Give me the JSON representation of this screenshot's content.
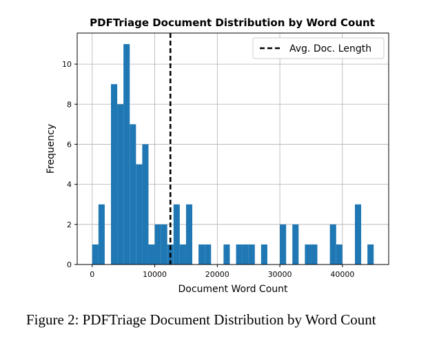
{
  "chart_data": {
    "type": "bar",
    "title": "PDFTriage Document Distribution by Word Count",
    "xlabel": "Document Word Count",
    "ylabel": "Frequency",
    "xlim": [
      -2400,
      47400
    ],
    "ylim": [
      0,
      11.55
    ],
    "xticks": [
      0,
      10000,
      20000,
      30000,
      40000
    ],
    "xtick_labels": [
      "0",
      "10000",
      "20000",
      "30000",
      "40000"
    ],
    "yticks": [
      0,
      2,
      4,
      6,
      8,
      10
    ],
    "ytick_labels": [
      "0",
      "2",
      "4",
      "6",
      "8",
      "10"
    ],
    "grid": true,
    "bar_color": "#1f77b4",
    "bins": [
      {
        "x0": 0,
        "x1": 1000,
        "value": 1
      },
      {
        "x0": 1000,
        "x1": 2000,
        "value": 3
      },
      {
        "x0": 3000,
        "x1": 4000,
        "value": 9
      },
      {
        "x0": 4000,
        "x1": 5000,
        "value": 8
      },
      {
        "x0": 5000,
        "x1": 6000,
        "value": 11
      },
      {
        "x0": 6000,
        "x1": 7000,
        "value": 7
      },
      {
        "x0": 7000,
        "x1": 8000,
        "value": 5
      },
      {
        "x0": 8000,
        "x1": 9000,
        "value": 6
      },
      {
        "x0": 9000,
        "x1": 10000,
        "value": 1
      },
      {
        "x0": 10000,
        "x1": 11000,
        "value": 2
      },
      {
        "x0": 11000,
        "x1": 12000,
        "value": 2
      },
      {
        "x0": 12000,
        "x1": 13000,
        "value": 1
      },
      {
        "x0": 13000,
        "x1": 14000,
        "value": 3
      },
      {
        "x0": 14000,
        "x1": 15000,
        "value": 1
      },
      {
        "x0": 15000,
        "x1": 16000,
        "value": 3
      },
      {
        "x0": 17000,
        "x1": 18000,
        "value": 1
      },
      {
        "x0": 18000,
        "x1": 19000,
        "value": 1
      },
      {
        "x0": 21000,
        "x1": 22000,
        "value": 1
      },
      {
        "x0": 23000,
        "x1": 24000,
        "value": 1
      },
      {
        "x0": 24000,
        "x1": 25000,
        "value": 1
      },
      {
        "x0": 25000,
        "x1": 26000,
        "value": 1
      },
      {
        "x0": 27000,
        "x1": 28000,
        "value": 1
      },
      {
        "x0": 30000,
        "x1": 31000,
        "value": 2
      },
      {
        "x0": 32000,
        "x1": 33000,
        "value": 2
      },
      {
        "x0": 34000,
        "x1": 35000,
        "value": 1
      },
      {
        "x0": 35000,
        "x1": 36000,
        "value": 1
      },
      {
        "x0": 38000,
        "x1": 39000,
        "value": 2
      },
      {
        "x0": 39000,
        "x1": 40000,
        "value": 1
      },
      {
        "x0": 42000,
        "x1": 43000,
        "value": 3
      },
      {
        "x0": 44000,
        "x1": 45000,
        "value": 1
      }
    ],
    "reference_line": {
      "label": "Avg. Doc. Length",
      "x": 12500,
      "style": "dashed",
      "color": "#000000"
    },
    "legend": {
      "position": "top-right",
      "entries": [
        "Avg. Doc. Length"
      ]
    }
  },
  "caption": "Figure 2: PDFTriage Document Distribution by Word Count"
}
